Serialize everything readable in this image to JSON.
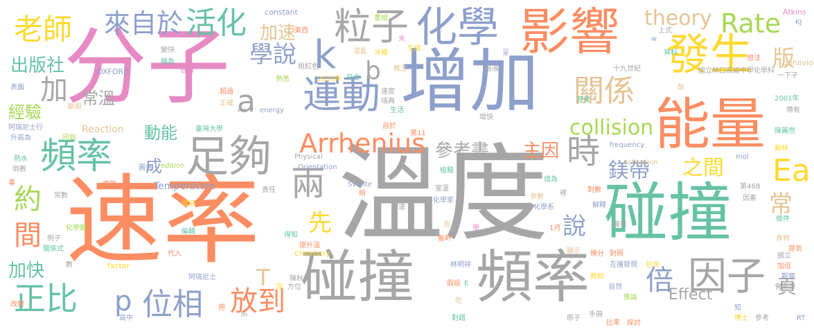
{
  "colors": {
    "grey": "#a6a6a6",
    "orange": "#fc8d62",
    "blue": "#8da0cb",
    "pink": "#e78ac3",
    "green": "#a6d854",
    "yellow": "#ffd92f",
    "tan": "#e5c494",
    "teal": "#66c2a5"
  },
  "words": [
    {
      "text": "溫度",
      "color": "grey"
    },
    {
      "text": "速率",
      "color": "orange"
    },
    {
      "text": "分子",
      "color": "pink"
    },
    {
      "text": "增加",
      "color": "blue"
    },
    {
      "text": "碰撞",
      "color": "teal"
    },
    {
      "text": "頻率",
      "color": "grey"
    },
    {
      "text": "碰撞",
      "color": "grey"
    },
    {
      "text": "影響",
      "color": "orange"
    },
    {
      "text": "化學",
      "color": "blue"
    },
    {
      "text": "能量",
      "color": "orange"
    },
    {
      "text": "發生",
      "color": "yellow"
    },
    {
      "text": "足夠",
      "color": "grey"
    },
    {
      "text": "運動",
      "color": "blue"
    },
    {
      "text": "頻率",
      "color": "teal"
    },
    {
      "text": "因子",
      "color": "grey"
    },
    {
      "text": "粒子",
      "color": "grey"
    },
    {
      "text": "老師",
      "color": "yellow"
    },
    {
      "text": "活化",
      "color": "teal"
    },
    {
      "text": "來自於",
      "color": "blue"
    },
    {
      "text": "Arrhenius",
      "color": "orange"
    },
    {
      "text": "正比",
      "color": "teal"
    },
    {
      "text": "位相",
      "color": "blue"
    },
    {
      "text": "放到",
      "color": "orange"
    },
    {
      "text": "關係",
      "color": "tan"
    },
    {
      "text": "學說",
      "color": "blue"
    },
    {
      "text": "時",
      "color": "grey"
    },
    {
      "text": "兩",
      "color": "grey"
    },
    {
      "text": "Ea",
      "color": "yellow"
    },
    {
      "text": "k",
      "color": "blue"
    },
    {
      "text": "b",
      "color": "grey"
    },
    {
      "text": "a",
      "color": "grey"
    },
    {
      "text": "p",
      "color": "blue"
    },
    {
      "text": "T",
      "color": "tan"
    },
    {
      "text": "加",
      "color": "grey"
    },
    {
      "text": "約",
      "color": "green"
    },
    {
      "text": "間",
      "color": "orange"
    },
    {
      "text": "倍",
      "color": "blue"
    },
    {
      "text": "說",
      "color": "blue"
    },
    {
      "text": "先",
      "color": "yellow"
    },
    {
      "text": "常",
      "color": "tan"
    },
    {
      "text": "版",
      "color": "tan"
    },
    {
      "text": "頁",
      "color": "grey"
    },
    {
      "text": "成",
      "color": "blue"
    },
    {
      "text": "出版社",
      "color": "teal"
    },
    {
      "text": "加速",
      "color": "tan"
    },
    {
      "text": "Rate",
      "color": "green"
    },
    {
      "text": "theory",
      "color": "tan"
    },
    {
      "text": "常溫",
      "color": "grey"
    },
    {
      "text": "經驗",
      "color": "green"
    },
    {
      "text": "動能",
      "color": "teal"
    },
    {
      "text": "collision",
      "color": "green"
    },
    {
      "text": "鎂帶",
      "color": "blue"
    },
    {
      "text": "之間",
      "color": "yellow"
    },
    {
      "text": "參考書",
      "color": "grey"
    },
    {
      "text": "主因",
      "color": "orange"
    },
    {
      "text": "加快",
      "color": "teal"
    },
    {
      "text": "Effect",
      "color": "grey"
    },
    {
      "text": "Temperature",
      "color": "blue"
    },
    {
      "text": "Reaction",
      "color": "tan"
    },
    {
      "text": "constant",
      "color": "blue"
    },
    {
      "text": "Atkins",
      "color": "pink"
    },
    {
      "text": "behavior",
      "color": "tan"
    },
    {
      "text": "OXFORD",
      "color": "blue"
    },
    {
      "text": "factor",
      "color": "yellow"
    },
    {
      "text": "energy",
      "color": "blue"
    },
    {
      "text": "edition",
      "color": "green"
    },
    {
      "text": "Physical",
      "color": "grey"
    },
    {
      "text": "Orientation",
      "color": "blue"
    },
    {
      "text": "Chemistry",
      "color": "yellow"
    },
    {
      "text": "Svante",
      "color": "blue"
    },
    {
      "text": "frequency",
      "color": "blue"
    },
    {
      "text": "activation",
      "color": "tan"
    },
    {
      "text": "mol",
      "color": "blue"
    },
    {
      "text": "2010年",
      "color": "yellow"
    },
    {
      "text": "2001年",
      "color": "teal"
    },
    {
      "text": "第11",
      "color": "orange"
    },
    {
      "text": "第46B",
      "color": "grey"
    },
    {
      "text": "十九世紀",
      "color": "grey"
    },
    {
      "text": "國立林口高級中學化學科",
      "color": "grey"
    },
    {
      "text": "臺灣大學",
      "color": "teal"
    },
    {
      "text": "阿瑞尼士行",
      "color": "blue"
    },
    {
      "text": "阿瑞尼士",
      "color": "blue"
    },
    {
      "text": "陳麗然",
      "color": "teal"
    },
    {
      "text": "陳秋炳",
      "color": "grey"
    },
    {
      "text": "林明祥",
      "color": "blue"
    },
    {
      "text": "藝軒",
      "color": "orange"
    },
    {
      "text": "輸林",
      "color": "yellow"
    },
    {
      "text": "升高為",
      "color": "blue"
    },
    {
      "text": "熱水",
      "color": "teal"
    },
    {
      "text": "倒數",
      "color": "grey"
    },
    {
      "text": "表面",
      "color": "blue"
    },
    {
      "text": "斷裂",
      "color": "tan"
    },
    {
      "text": "變快",
      "color": "grey"
    },
    {
      "text": "稱為",
      "color": "teal"
    },
    {
      "text": "告訴",
      "color": "pink"
    },
    {
      "text": "超過",
      "color": "orange"
    },
    {
      "text": "正確",
      "color": "tan"
    },
    {
      "text": "熟悉",
      "color": "green"
    },
    {
      "text": "桃紅色",
      "color": "grey"
    },
    {
      "text": "符合",
      "color": "teal"
    },
    {
      "text": "速度",
      "color": "grey"
    },
    {
      "text": "瑞典",
      "color": "grey"
    },
    {
      "text": "生活",
      "color": "teal"
    },
    {
      "text": "自於",
      "color": "orange"
    },
    {
      "text": "增快",
      "color": "grey"
    },
    {
      "text": "直覺",
      "color": "teal"
    },
    {
      "text": "帶有",
      "color": "grey"
    },
    {
      "text": "重組",
      "color": "green"
    },
    {
      "text": "東西",
      "color": "orange"
    },
    {
      "text": "末",
      "color": "pink"
    },
    {
      "text": "冰箱",
      "color": "yellow"
    },
    {
      "text": "生成",
      "color": "yellow"
    },
    {
      "text": "溶液",
      "color": "grey"
    },
    {
      "text": "概念",
      "color": "tan"
    },
    {
      "text": "混亂",
      "color": "tan"
    },
    {
      "text": "呈",
      "color": "blue"
    },
    {
      "text": "上式",
      "color": "grey"
    },
    {
      "text": "想法",
      "color": "orange"
    },
    {
      "text": "資料",
      "color": "teal"
    },
    {
      "text": "一下子",
      "color": "grey"
    },
    {
      "text": "酚",
      "color": "tan"
    },
    {
      "text": "KJ",
      "color": "blue"
    },
    {
      "text": "w",
      "color": "blue"
    },
    {
      "text": "Ae",
      "color": "grey"
    },
    {
      "text": "回到",
      "color": "green"
    },
    {
      "text": "圖書",
      "color": "blue"
    },
    {
      "text": "事",
      "color": "orange"
    },
    {
      "text": "常數",
      "color": "grey"
    },
    {
      "text": "腐敗",
      "color": "orange"
    },
    {
      "text": "責任",
      "color": "grey"
    },
    {
      "text": "檢驗",
      "color": "teal"
    },
    {
      "text": "辦",
      "color": "orange"
    },
    {
      "text": "增為",
      "color": "teal"
    },
    {
      "text": "對數",
      "color": "orange"
    },
    {
      "text": "因素",
      "color": "grey"
    },
    {
      "text": "參數",
      "color": "tan"
    },
    {
      "text": "裡",
      "color": "grey"
    },
    {
      "text": "化學系",
      "color": "blue"
    },
    {
      "text": "解釋",
      "color": "blue"
    },
    {
      "text": "化學家",
      "color": "blue"
    },
    {
      "text": "傳達",
      "color": "grey"
    },
    {
      "text": "室溫",
      "color": "grey"
    },
    {
      "text": "條件",
      "color": "teal"
    },
    {
      "text": "擁有",
      "color": "grey"
    },
    {
      "text": "食物",
      "color": "tan"
    },
    {
      "text": "提到",
      "color": "orange"
    },
    {
      "text": "增倍",
      "color": "yellow"
    },
    {
      "text": "化學鍵",
      "color": "green"
    },
    {
      "text": "例子",
      "color": "grey"
    },
    {
      "text": "關係式",
      "color": "teal"
    },
    {
      "text": "編輯",
      "color": "teal"
    },
    {
      "text": "得知",
      "color": "teal"
    },
    {
      "text": "提升溫",
      "color": "orange"
    },
    {
      "text": "泡",
      "color": "tan"
    },
    {
      "text": "學",
      "color": "pink"
    },
    {
      "text": "1月",
      "color": "orange"
    },
    {
      "text": "顯示",
      "color": "tan"
    },
    {
      "text": "積分",
      "color": "orange"
    },
    {
      "text": "對照",
      "color": "orange"
    },
    {
      "text": "發現",
      "color": "blue"
    },
    {
      "text": "互撞",
      "color": "blue"
    },
    {
      "text": "包含",
      "color": "yellow"
    },
    {
      "text": "加倍",
      "color": "orange"
    },
    {
      "text": "國立",
      "color": "grey"
    },
    {
      "text": "數",
      "color": "grey"
    },
    {
      "text": "代入",
      "color": "orange"
    },
    {
      "text": "方位",
      "color": "grey"
    },
    {
      "text": "完",
      "color": "yellow"
    },
    {
      "text": "假設",
      "color": "orange"
    },
    {
      "text": "E",
      "color": "teal"
    },
    {
      "text": "教師",
      "color": "yellow"
    },
    {
      "text": "自然",
      "color": "blue"
    },
    {
      "text": "觀察",
      "color": "blue"
    },
    {
      "text": "會圖譯",
      "color": "grey"
    },
    {
      "text": "推論",
      "color": "green"
    },
    {
      "text": "知",
      "color": "blue"
    },
    {
      "text": "博士",
      "color": "yellow"
    },
    {
      "text": "改變",
      "color": "orange"
    },
    {
      "text": "高中",
      "color": "blue"
    },
    {
      "text": "冊",
      "color": "orange"
    },
    {
      "text": "ln",
      "color": "grey"
    },
    {
      "text": "吃",
      "color": "tan"
    },
    {
      "text": "對錯",
      "color": "teal"
    },
    {
      "text": "原子",
      "color": "grey"
    },
    {
      "text": "手冊",
      "color": "grey"
    },
    {
      "text": "比率",
      "color": "orange"
    },
    {
      "text": "探討",
      "color": "orange"
    },
    {
      "text": "參考",
      "color": "grey"
    },
    {
      "text": "RT",
      "color": "blue"
    }
  ]
}
